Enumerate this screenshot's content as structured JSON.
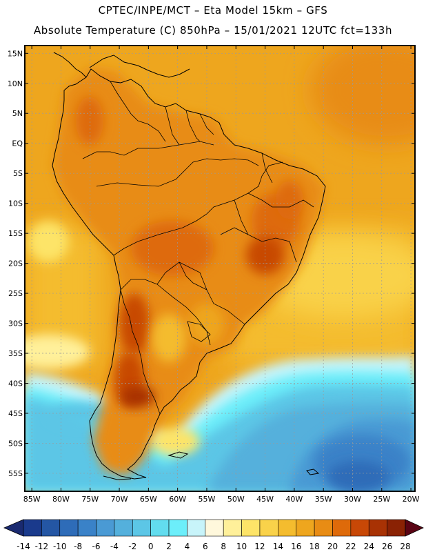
{
  "title_line1": "CPTEC/INPE/MCT  –   Eta Model 15km  –  GFS",
  "title_line2": "Absolute Temperature (C) 850hPa – 15/01/2021 12UTC fct=133h",
  "lat_labels": [
    "15N",
    "10N",
    "5N",
    "EQ",
    "5S",
    "10S",
    "15S",
    "20S",
    "25S",
    "30S",
    "35S",
    "40S",
    "45S",
    "50S",
    "55S"
  ],
  "lat_values": [
    15,
    10,
    5,
    0,
    -5,
    -10,
    -15,
    -20,
    -25,
    -30,
    -35,
    -40,
    -45,
    -50,
    -55
  ],
  "lon_labels": [
    "85W",
    "80W",
    "75W",
    "70W",
    "65W",
    "60W",
    "55W",
    "50W",
    "45W",
    "40W",
    "35W",
    "30W",
    "25W",
    "20W"
  ],
  "lon_values": [
    -85,
    -80,
    -75,
    -70,
    -65,
    -60,
    -55,
    -50,
    -45,
    -40,
    -35,
    -30,
    -25,
    -20
  ],
  "colorbar": {
    "ticks": [
      "-14",
      "-12",
      "-10",
      "-8",
      "-6",
      "-4",
      "-2",
      "0",
      "2",
      "4",
      "6",
      "8",
      "10",
      "12",
      "14",
      "16",
      "18",
      "20",
      "22",
      "24",
      "26",
      "28"
    ],
    "colors": [
      "#1a3a8c",
      "#2456a4",
      "#2e6cb8",
      "#3a82c8",
      "#4a9ad4",
      "#54b0dc",
      "#5cc6e6",
      "#62dcee",
      "#6ceefa",
      "#c8f4fa",
      "#fff8dc",
      "#fff09a",
      "#fde468",
      "#f9d24a",
      "#f4bc2e",
      "#eea61e",
      "#e88c14",
      "#de6a0a",
      "#c84806",
      "#a83204",
      "#8a2204",
      "#6a1404"
    ],
    "low_color": "#1a2a70",
    "high_color": "#5a0414"
  }
}
